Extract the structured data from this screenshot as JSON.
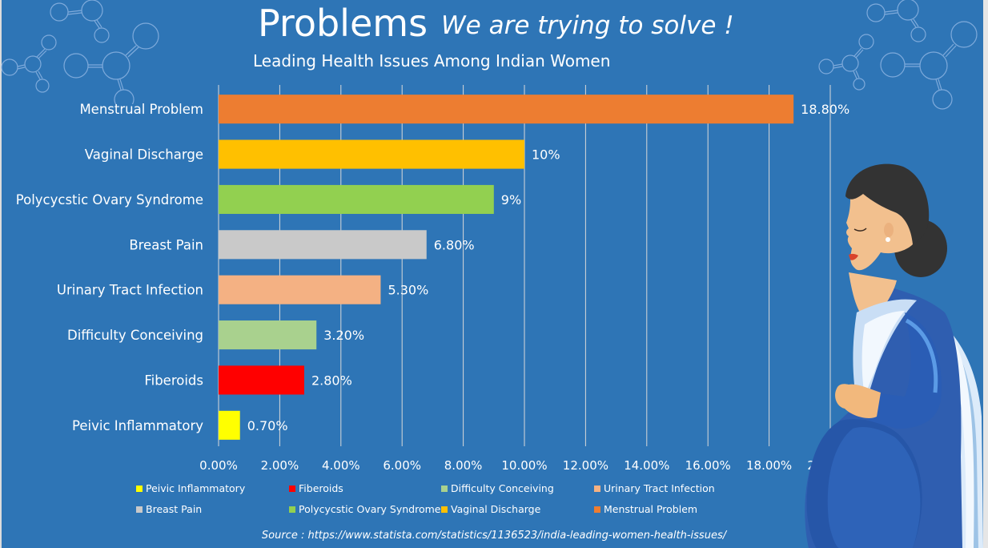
{
  "header": {
    "title": "Problems",
    "tagline": "We are trying to solve !",
    "subtitle": "Leading Health Issues Among Indian Women"
  },
  "source": "Source : https://www.statista.com/statistics/1136523/india-leading-women-health-issues/",
  "colors": {
    "background": "#2E75B6",
    "gridline": "#D9D9D9",
    "text": "#FFFFFF"
  },
  "decorations": {
    "molecule_icons": [
      "molecule-icon",
      "molecule-icon"
    ],
    "illustration": "pregnant-woman-illustration"
  },
  "chart_data": {
    "type": "bar",
    "orientation": "horizontal",
    "title": "Leading Health Issues Among Indian Women",
    "xlabel": "",
    "ylabel": "",
    "xlim": [
      0,
      20
    ],
    "x_ticks": [
      "0.00%",
      "2.00%",
      "4.00%",
      "6.00%",
      "8.00%",
      "10.00%",
      "12.00%",
      "14.00%",
      "16.00%",
      "18.00%",
      "20.00%"
    ],
    "x_tick_values": [
      0,
      2,
      4,
      6,
      8,
      10,
      12,
      14,
      16,
      18,
      20
    ],
    "grid": "vertical",
    "legend_position": "bottom",
    "categories": [
      "Menstrual Problem",
      "Vaginal Discharge",
      "Polycycstic Ovary Syndrome",
      "Breast Pain",
      "Urinary Tract Infection",
      "Difficulty Conceiving",
      "Fiberoids",
      "Peivic Inflammatory"
    ],
    "values": [
      18.8,
      10,
      9,
      6.8,
      5.3,
      3.2,
      2.8,
      0.7
    ],
    "data_labels": [
      "18.80%",
      "10%",
      "9%",
      "6.80%",
      "5.30%",
      "3.20%",
      "2.80%",
      "0.70%"
    ],
    "bar_colors": [
      "#ED7D31",
      "#FFC000",
      "#92D050",
      "#C9C9C9",
      "#F4B183",
      "#A9D18E",
      "#FF0000",
      "#FFFF00"
    ],
    "legend": [
      {
        "label": "Peivic Inflammatory",
        "color": "#FFFF00"
      },
      {
        "label": "Fiberoids",
        "color": "#FF0000"
      },
      {
        "label": "Difficulty Conceiving",
        "color": "#A9D18E"
      },
      {
        "label": "Urinary Tract Infection",
        "color": "#F4B183"
      },
      {
        "label": "Breast Pain",
        "color": "#C9C9C9"
      },
      {
        "label": "Polycycstic Ovary Syndrome",
        "color": "#92D050"
      },
      {
        "label": "Vaginal Discharge",
        "color": "#FFC000"
      },
      {
        "label": "Menstrual Problem",
        "color": "#ED7D31"
      }
    ]
  }
}
